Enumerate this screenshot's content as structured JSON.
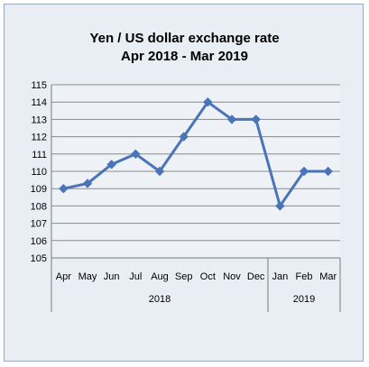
{
  "chart_data": {
    "type": "line",
    "title": "Yen / US dollar exchange rate",
    "subtitle": "Apr 2018 - Mar 2019",
    "categories": [
      "Apr",
      "May",
      "Jun",
      "Jul",
      "Aug",
      "Sep",
      "Oct",
      "Nov",
      "Dec",
      "Jan",
      "Feb",
      "Mar"
    ],
    "groups": [
      {
        "label": "2018",
        "count": 9
      },
      {
        "label": "2019",
        "count": 3
      }
    ],
    "series": [
      {
        "values": [
          109.0,
          109.3,
          110.4,
          111.0,
          110.0,
          112.0,
          114.0,
          113.0,
          113.0,
          108.0,
          110.0,
          110.0
        ]
      }
    ],
    "ylim": [
      105,
      115
    ],
    "yticks": [
      105,
      106,
      107,
      108,
      109,
      110,
      111,
      112,
      113,
      114,
      115
    ],
    "grid": true,
    "legend": "none",
    "line_color": "#4a74b8",
    "xlabel": "",
    "ylabel": ""
  }
}
